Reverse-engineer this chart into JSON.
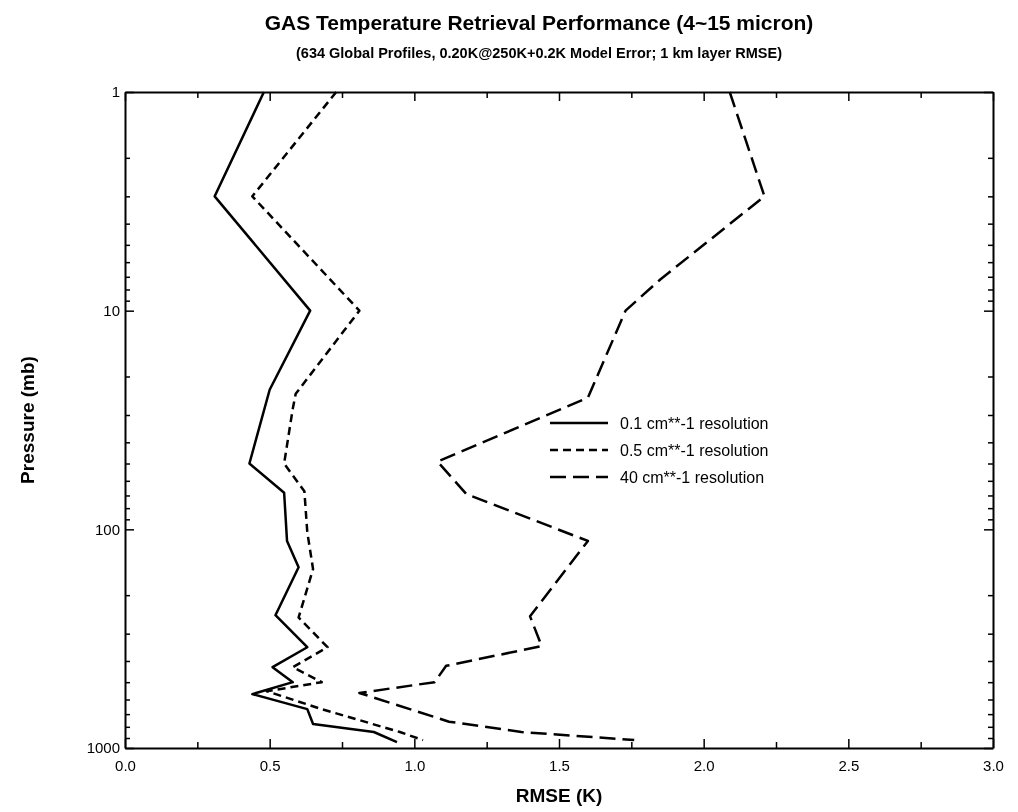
{
  "chart_data": {
    "type": "line",
    "title": "GAS Temperature Retrieval Performance (4~15 micron)",
    "subtitle": "(634 Global Profiles, 0.20K@250K+0.2K Model Error; 1 km layer RMSE)",
    "xlabel": "RMSE (K)",
    "ylabel": "Pressure (mb)",
    "xlim": [
      0,
      3
    ],
    "ylim": [
      1000,
      1
    ],
    "log": "y",
    "xticks": [
      {
        "value": 0,
        "label": "0.0"
      },
      {
        "value": 0.25,
        "label": null
      },
      {
        "value": 0.5,
        "label": "0.5"
      },
      {
        "value": 0.75,
        "label": null
      },
      {
        "value": 1,
        "label": "1.0"
      },
      {
        "value": 1.25,
        "label": null
      },
      {
        "value": 1.5,
        "label": "1.5"
      },
      {
        "value": 1.75,
        "label": null
      },
      {
        "value": 2,
        "label": "2.0"
      },
      {
        "value": 2.25,
        "label": null
      },
      {
        "value": 2.5,
        "label": "2.5"
      },
      {
        "value": 2.75,
        "label": null
      },
      {
        "value": 3,
        "label": "3.0"
      }
    ],
    "yticks": [
      1,
      {
        "value": 2,
        "label": null
      },
      {
        "value": 3,
        "label": null
      },
      {
        "value": 4,
        "label": null
      },
      {
        "value": 5,
        "label": null
      },
      {
        "value": 6,
        "label": null
      },
      {
        "value": 7,
        "label": null
      },
      {
        "value": 8,
        "label": null
      },
      {
        "value": 9,
        "label": null
      },
      10,
      {
        "value": 20,
        "label": null
      },
      {
        "value": 30,
        "label": null
      },
      {
        "value": 40,
        "label": null
      },
      {
        "value": 50,
        "label": null
      },
      {
        "value": 60,
        "label": null
      },
      {
        "value": 70,
        "label": null
      },
      {
        "value": 80,
        "label": null
      },
      {
        "value": 90,
        "label": null
      },
      100,
      {
        "value": 200,
        "label": null
      },
      {
        "value": 300,
        "label": null
      },
      {
        "value": 400,
        "label": null
      },
      {
        "value": 500,
        "label": null
      },
      {
        "value": 600,
        "label": null
      },
      {
        "value": 700,
        "label": null
      },
      {
        "value": 800,
        "label": null
      },
      {
        "value": 900,
        "label": null
      },
      1000
    ],
    "grid": false,
    "legend": "center",
    "marker": "none",
    "series": [
      {
        "name": "0.1 cm**-1 resolution",
        "color": "#000000",
        "line_style": "solid",
        "x": [
          0.48,
          0.31,
          0.64,
          0.5,
          0.43,
          0.55,
          0.56,
          0.6,
          0.52,
          0.63,
          0.51,
          0.58,
          0.44,
          0.63,
          0.65,
          0.86,
          0.94
        ],
        "values": [
          1,
          3,
          10,
          23,
          50,
          68,
          113,
          149,
          247,
          346,
          427,
          500,
          567,
          664,
          777,
          845,
          939
        ]
      },
      {
        "name": "0.5 cm**-1 resolution",
        "color": "#000000",
        "line_style": "dashed",
        "x": [
          0.73,
          0.44,
          0.81,
          0.59,
          0.58,
          0.55,
          0.62,
          0.63,
          0.65,
          0.6,
          0.7,
          0.58,
          0.68,
          0.49,
          0.68,
          0.95,
          1.03
        ],
        "values": [
          1,
          3,
          10,
          24,
          28,
          50,
          67,
          103,
          152,
          253,
          346,
          427,
          500,
          550,
          664,
          845,
          920
        ]
      },
      {
        "name": "40 cm**-1 resolution",
        "color": "#000000",
        "line_style": "dashed",
        "x": [
          2.09,
          2.21,
          1.85,
          1.73,
          1.6,
          1.08,
          1.18,
          1.6,
          1.4,
          1.44,
          1.11,
          1.07,
          0.81,
          1.12,
          1.37,
          1.76
        ],
        "values": [
          1,
          3,
          7.2,
          10,
          25,
          49,
          69,
          113,
          250,
          342,
          421,
          500,
          560,
          758,
          845,
          920
        ]
      }
    ]
  }
}
